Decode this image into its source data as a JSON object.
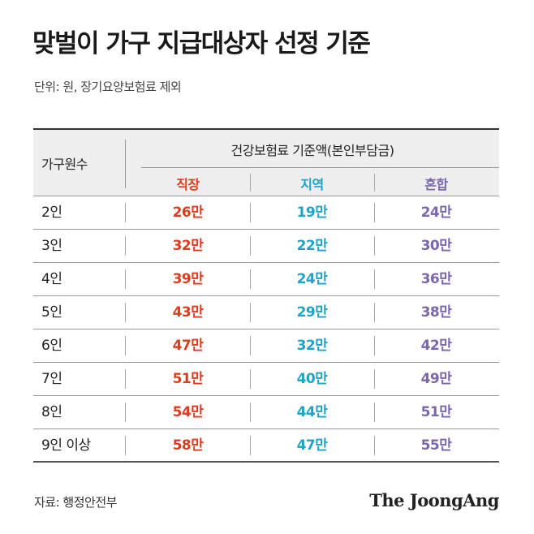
{
  "title": "맞벌이 가구 지급대상자 선정 기준",
  "unit_note": "단위: 원, 장기요양보험료 제외",
  "table": {
    "col_household": "가구원수",
    "group_header": "건강보험료 기준액(본인부담금)",
    "sub_headers": [
      "직장",
      "지역",
      "혼합"
    ],
    "colors": {
      "workplace": "#e03a1e",
      "regional": "#1fa3c8",
      "mixed": "#7b66ad"
    },
    "rows": [
      {
        "household": "2인",
        "workplace": "26만",
        "regional": "19만",
        "mixed": "24만"
      },
      {
        "household": "3인",
        "workplace": "32만",
        "regional": "22만",
        "mixed": "30만"
      },
      {
        "household": "4인",
        "workplace": "39만",
        "regional": "24만",
        "mixed": "36만"
      },
      {
        "household": "5인",
        "workplace": "43만",
        "regional": "29만",
        "mixed": "38만"
      },
      {
        "household": "6인",
        "workplace": "47만",
        "regional": "32만",
        "mixed": "42만"
      },
      {
        "household": "7인",
        "workplace": "51만",
        "regional": "40만",
        "mixed": "49만"
      },
      {
        "household": "8인",
        "workplace": "54만",
        "regional": "44만",
        "mixed": "51만"
      },
      {
        "household": "9인 이상",
        "workplace": "58만",
        "regional": "47만",
        "mixed": "55만"
      }
    ]
  },
  "source": "자료: 행정안전부",
  "brand": "The JoongAng"
}
